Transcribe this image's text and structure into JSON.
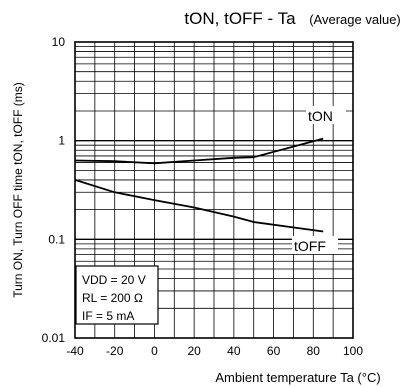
{
  "chart_data": {
    "type": "line",
    "title_main": "tON, tOFF - Ta",
    "title_note": "(Average value)",
    "xlabel": "Ambient temperature Ta (°C)",
    "ylabel": "Turn ON, Turn OFF time tON, tOFF (ms)",
    "x_ticks": [
      "-40",
      "-20",
      "0",
      "20",
      "40",
      "60",
      "80",
      "100"
    ],
    "y_ticks": [
      "0.01",
      "0.1",
      "1",
      "10"
    ],
    "xlim": [
      -40,
      100
    ],
    "ylim": [
      0.01,
      10
    ],
    "yscale": "log",
    "grid": true,
    "conditions": [
      "VDD = 20 V",
      "RL = 200 Ω",
      "IF = 5 mA"
    ],
    "series": [
      {
        "name": "tON",
        "x": [
          -40,
          -20,
          0,
          20,
          40,
          50,
          85
        ],
        "y": [
          0.63,
          0.62,
          0.59,
          0.63,
          0.67,
          0.68,
          1.05
        ]
      },
      {
        "name": "tOFF",
        "x": [
          -40,
          -20,
          0,
          20,
          40,
          50,
          85
        ],
        "y": [
          0.4,
          0.3,
          0.25,
          0.21,
          0.17,
          0.15,
          0.12
        ]
      }
    ]
  }
}
